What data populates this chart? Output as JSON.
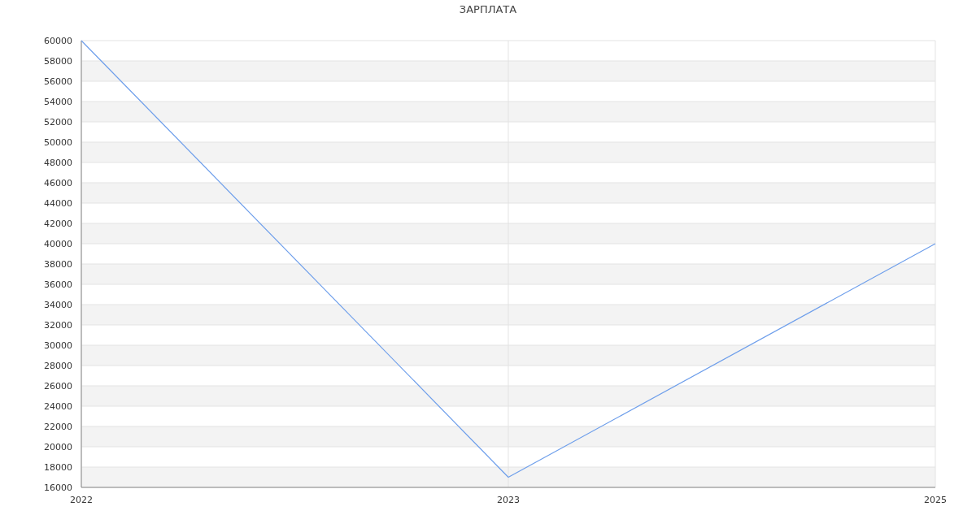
{
  "chart_data": {
    "type": "line",
    "title": "ЗАРПЛАТА",
    "categories": [
      "2022",
      "2023",
      "2025"
    ],
    "series": [
      {
        "color": "#6d9eeb",
        "values": [
          60000,
          17000,
          40000
        ]
      }
    ],
    "ylim": [
      16000,
      60000
    ],
    "yticks": [
      16000,
      18000,
      20000,
      22000,
      24000,
      26000,
      28000,
      30000,
      32000,
      34000,
      36000,
      38000,
      40000,
      42000,
      44000,
      46000,
      48000,
      50000,
      52000,
      54000,
      56000,
      58000,
      60000
    ],
    "grid": true,
    "marker": "none",
    "line_style": "solid"
  }
}
